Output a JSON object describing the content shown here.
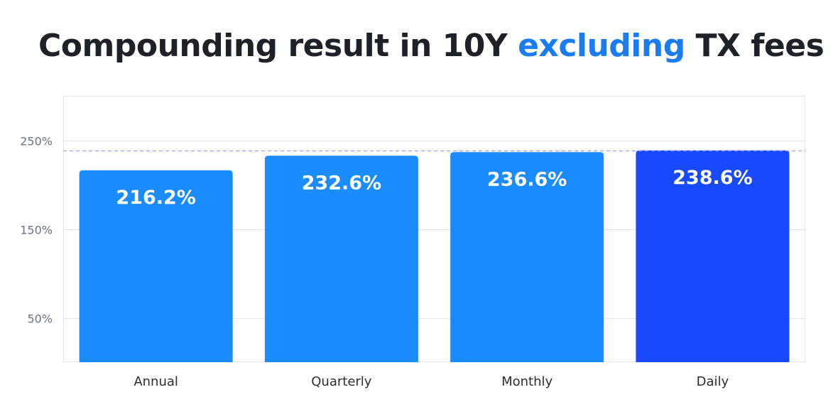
{
  "title": {
    "prefix": "Compounding result in 10Y ",
    "highlight": "excluding",
    "suffix": " TX fees"
  },
  "colors": {
    "title_text": "#1f2128",
    "title_accent": "#1a7cf2",
    "bar": "#1a8cff",
    "bar_highlight": "#1749ff",
    "reference_line": "#8f97ff",
    "grid": "#e3e5ea"
  },
  "chart_data": {
    "type": "bar",
    "title": "Compounding result in 10Y excluding TX fees",
    "categories": [
      "Annual",
      "Quarterly",
      "Monthly",
      "Daily"
    ],
    "values": [
      216.2,
      232.6,
      236.6,
      238.6
    ],
    "value_labels": [
      "216.2%",
      "232.6%",
      "236.6%",
      "238.6%"
    ],
    "highlight_index": 3,
    "axis": {
      "min": 0,
      "max": 300,
      "ticks": [
        50,
        150,
        250
      ],
      "tick_labels": [
        "50%",
        "150%",
        "250%"
      ]
    },
    "xlabel": "",
    "ylabel": "",
    "grid": true,
    "reference_line": {
      "value": 238.6,
      "style": "dashed"
    },
    "legend": "none"
  }
}
